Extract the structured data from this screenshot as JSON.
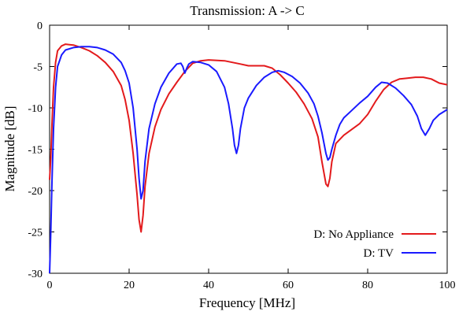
{
  "chart_data": {
    "type": "line",
    "title": "Transmission: A -> C",
    "xlabel": "Frequency [MHz]",
    "ylabel": "Magnitude [dB]",
    "xlim": [
      0,
      100
    ],
    "ylim": [
      -30,
      0
    ],
    "x_ticks": [
      0,
      20,
      40,
      60,
      80,
      100
    ],
    "y_ticks": [
      0,
      -5,
      -10,
      -15,
      -20,
      -25,
      -30
    ],
    "grid": false,
    "legend_position": "bottom-right",
    "series": [
      {
        "name": "D: No Appliance",
        "color": "#e31a1c",
        "points": [
          [
            0,
            -18.7
          ],
          [
            0.3,
            -16.0
          ],
          [
            0.6,
            -12.0
          ],
          [
            1.0,
            -7.5
          ],
          [
            1.5,
            -4.5
          ],
          [
            2.0,
            -3.1
          ],
          [
            3.0,
            -2.5
          ],
          [
            4.0,
            -2.3
          ],
          [
            5.0,
            -2.35
          ],
          [
            6.0,
            -2.4
          ],
          [
            8.0,
            -2.7
          ],
          [
            10.0,
            -3.1
          ],
          [
            12.0,
            -3.7
          ],
          [
            14.0,
            -4.5
          ],
          [
            16.0,
            -5.6
          ],
          [
            18.0,
            -7.3
          ],
          [
            19.0,
            -9.0
          ],
          [
            20.0,
            -11.5
          ],
          [
            21.0,
            -15.5
          ],
          [
            22.0,
            -20.5
          ],
          [
            22.5,
            -23.5
          ],
          [
            23.0,
            -25.0
          ],
          [
            23.5,
            -23.0
          ],
          [
            24.0,
            -19.5
          ],
          [
            25.0,
            -15.5
          ],
          [
            26.5,
            -12.3
          ],
          [
            28.0,
            -10.2
          ],
          [
            30.0,
            -8.3
          ],
          [
            32.0,
            -6.9
          ],
          [
            34.0,
            -5.6
          ],
          [
            36.0,
            -4.6
          ],
          [
            38.0,
            -4.3
          ],
          [
            40.0,
            -4.2
          ],
          [
            44.0,
            -4.3
          ],
          [
            48.0,
            -4.7
          ],
          [
            50.0,
            -4.9
          ],
          [
            54.0,
            -4.9
          ],
          [
            56.0,
            -5.2
          ],
          [
            58.0,
            -6.0
          ],
          [
            60.0,
            -7.0
          ],
          [
            62.0,
            -8.1
          ],
          [
            64.0,
            -9.5
          ],
          [
            66.0,
            -11.3
          ],
          [
            67.5,
            -13.5
          ],
          [
            68.5,
            -16.5
          ],
          [
            69.5,
            -19.2
          ],
          [
            70.0,
            -19.5
          ],
          [
            70.5,
            -18.5
          ],
          [
            71.0,
            -16.5
          ],
          [
            72.0,
            -14.3
          ],
          [
            74.0,
            -13.3
          ],
          [
            76.0,
            -12.6
          ],
          [
            78.0,
            -11.9
          ],
          [
            80.0,
            -10.8
          ],
          [
            82.0,
            -9.2
          ],
          [
            84.0,
            -7.8
          ],
          [
            86.0,
            -6.9
          ],
          [
            88.0,
            -6.5
          ],
          [
            90.0,
            -6.4
          ],
          [
            92.0,
            -6.3
          ],
          [
            94.0,
            -6.3
          ],
          [
            96.0,
            -6.5
          ],
          [
            98.0,
            -7.0
          ],
          [
            100.0,
            -7.2
          ]
        ]
      },
      {
        "name": "D: TV",
        "color": "#1a1aff",
        "points": [
          [
            0,
            -30.0
          ],
          [
            0.3,
            -25.0
          ],
          [
            0.6,
            -19.0
          ],
          [
            1.0,
            -12.5
          ],
          [
            1.5,
            -7.5
          ],
          [
            2.0,
            -5.0
          ],
          [
            3.0,
            -3.6
          ],
          [
            4.0,
            -3.0
          ],
          [
            6.0,
            -2.7
          ],
          [
            8.0,
            -2.6
          ],
          [
            10.0,
            -2.6
          ],
          [
            12.0,
            -2.7
          ],
          [
            14.0,
            -3.0
          ],
          [
            16.0,
            -3.5
          ],
          [
            18.0,
            -4.5
          ],
          [
            19.0,
            -5.5
          ],
          [
            20.0,
            -7.0
          ],
          [
            21.0,
            -10.0
          ],
          [
            22.0,
            -15.0
          ],
          [
            22.5,
            -18.5
          ],
          [
            23.0,
            -21.0
          ],
          [
            23.5,
            -20.0
          ],
          [
            24.0,
            -16.5
          ],
          [
            25.0,
            -12.5
          ],
          [
            26.5,
            -9.5
          ],
          [
            28.0,
            -7.5
          ],
          [
            30.0,
            -5.8
          ],
          [
            32.0,
            -4.7
          ],
          [
            33.0,
            -4.6
          ],
          [
            33.5,
            -5.0
          ],
          [
            34.0,
            -5.8
          ],
          [
            34.5,
            -5.2
          ],
          [
            35.0,
            -4.7
          ],
          [
            36.0,
            -4.4
          ],
          [
            38.0,
            -4.5
          ],
          [
            40.0,
            -4.8
          ],
          [
            42.0,
            -5.6
          ],
          [
            44.0,
            -7.5
          ],
          [
            45.0,
            -9.5
          ],
          [
            46.0,
            -12.5
          ],
          [
            46.5,
            -14.5
          ],
          [
            47.0,
            -15.5
          ],
          [
            47.5,
            -14.5
          ],
          [
            48.0,
            -12.5
          ],
          [
            49.0,
            -10.0
          ],
          [
            50.0,
            -8.8
          ],
          [
            52.0,
            -7.3
          ],
          [
            54.0,
            -6.3
          ],
          [
            56.0,
            -5.7
          ],
          [
            57.5,
            -5.5
          ],
          [
            59.0,
            -5.7
          ],
          [
            61.0,
            -6.2
          ],
          [
            63.0,
            -7.0
          ],
          [
            65.0,
            -8.2
          ],
          [
            66.5,
            -9.5
          ],
          [
            67.5,
            -11.0
          ],
          [
            68.5,
            -13.0
          ],
          [
            69.5,
            -15.5
          ],
          [
            70.0,
            -16.3
          ],
          [
            70.5,
            -16.0
          ],
          [
            71.0,
            -15.0
          ],
          [
            72.0,
            -13.3
          ],
          [
            73.0,
            -12.0
          ],
          [
            74.0,
            -11.2
          ],
          [
            76.0,
            -10.3
          ],
          [
            78.0,
            -9.4
          ],
          [
            80.0,
            -8.6
          ],
          [
            82.0,
            -7.5
          ],
          [
            83.5,
            -6.9
          ],
          [
            85.0,
            -7.0
          ],
          [
            87.0,
            -7.6
          ],
          [
            89.0,
            -8.5
          ],
          [
            91.0,
            -9.6
          ],
          [
            92.5,
            -11.0
          ],
          [
            93.5,
            -12.5
          ],
          [
            94.5,
            -13.3
          ],
          [
            95.5,
            -12.5
          ],
          [
            96.5,
            -11.5
          ],
          [
            98.0,
            -10.8
          ],
          [
            100.0,
            -10.2
          ]
        ]
      }
    ]
  }
}
